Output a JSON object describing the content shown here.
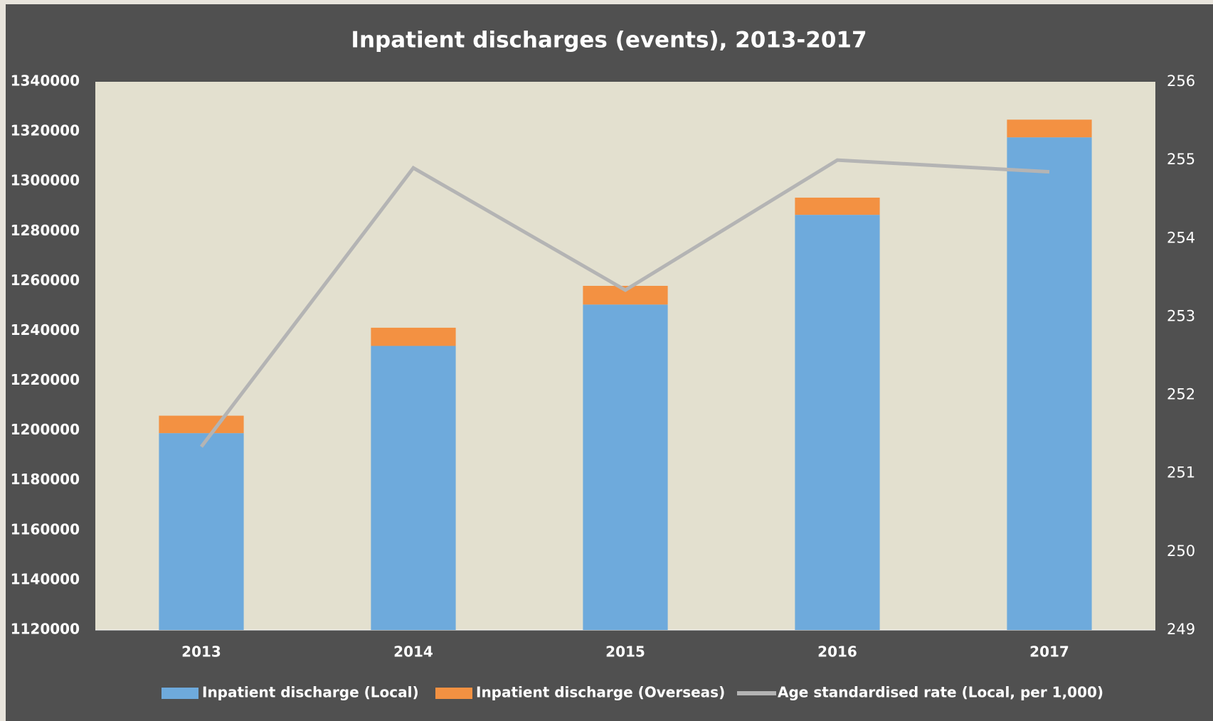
{
  "chart_data": {
    "type": "bar",
    "stacked": true,
    "title": "Inpatient discharges (events), 2013-2017",
    "categories": [
      "2013",
      "2014",
      "2015",
      "2016",
      "2017"
    ],
    "series": [
      {
        "name": "Inpatient discharge (Local)",
        "color": "#6eaadc",
        "values": [
          1199000,
          1234000,
          1250600,
          1286600,
          1317700
        ]
      },
      {
        "name": "Inpatient discharge (Overseas)",
        "color": "#f39142",
        "values": [
          7000,
          7300,
          7500,
          6900,
          7100
        ]
      },
      {
        "name": "Age standardised rate (Local, per 1,000)",
        "color": "#b4b4b4",
        "type": "line",
        "axis": "y2",
        "values": [
          251.34,
          254.9,
          253.34,
          255.0,
          254.85
        ]
      }
    ],
    "ylim": [
      1120000,
      1340000
    ],
    "yticks": [
      1120000,
      1140000,
      1160000,
      1180000,
      1200000,
      1220000,
      1240000,
      1260000,
      1280000,
      1300000,
      1320000,
      1340000
    ],
    "y2lim": [
      249,
      256
    ],
    "y2ticks": [
      249,
      250,
      251,
      252,
      253,
      254,
      255,
      256
    ],
    "grid": false,
    "legend": "bottom"
  }
}
